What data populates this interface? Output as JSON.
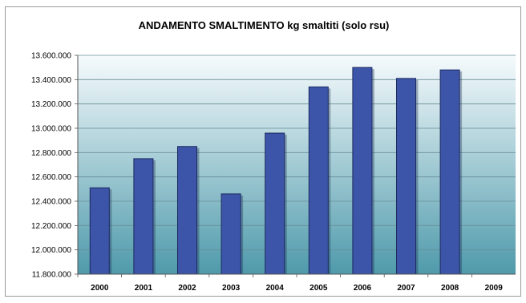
{
  "chart_data": {
    "type": "bar",
    "title": "ANDAMENTO SMALTIMENTO kg smaltiti (solo rsu)",
    "xlabel": "",
    "ylabel": "",
    "categories": [
      "2000",
      "2001",
      "2002",
      "2003",
      "2004",
      "2005",
      "2006",
      "2007",
      "2008",
      "2009"
    ],
    "values": [
      12510000,
      12750000,
      12850000,
      12460000,
      12960000,
      13340000,
      13500000,
      13410000,
      13480000,
      null
    ],
    "ylim": [
      11800000,
      13600000
    ],
    "yticks": [
      11800000,
      12000000,
      12200000,
      12400000,
      12600000,
      12800000,
      13000000,
      13200000,
      13400000,
      13600000
    ],
    "ytick_labels": [
      "11.800.000",
      "12.000.000",
      "12.200.000",
      "12.400.000",
      "12.600.000",
      "12.800.000",
      "13.000.000",
      "13.200.000",
      "13.400.000",
      "13.600.000"
    ],
    "grid": true,
    "legend": "none",
    "colors": {
      "bar": "#3d55a8",
      "bar_edge": "#1c2a60",
      "plot_bg_top": "#f6fbfd",
      "plot_bg_bottom": "#4f9aab",
      "grid": "#6a8f99"
    }
  }
}
